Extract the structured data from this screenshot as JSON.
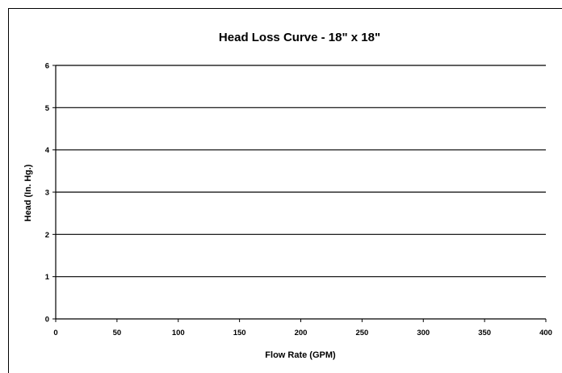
{
  "chart_data": {
    "type": "line",
    "title": "Head Loss Curve - 18\" x 18\"",
    "xlabel": "Flow Rate (GPM)",
    "ylabel": "Head (In. Hg.)",
    "xlim": [
      0,
      400
    ],
    "ylim": [
      0,
      6
    ],
    "x_ticks": [
      "0",
      "50",
      "100",
      "150",
      "200",
      "250",
      "300",
      "350",
      "400"
    ],
    "y_ticks": [
      "0",
      "1",
      "2",
      "3",
      "4",
      "5",
      "6"
    ],
    "grid": "horizontal",
    "series": []
  }
}
